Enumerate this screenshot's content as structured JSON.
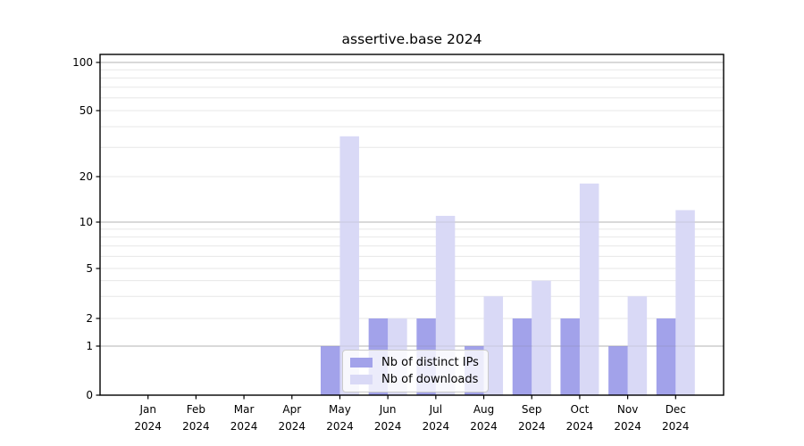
{
  "chart_data": {
    "type": "bar",
    "title": "assertive.base 2024",
    "categories": [
      "Jan",
      "Feb",
      "Mar",
      "Apr",
      "May",
      "Jun",
      "Jul",
      "Aug",
      "Sep",
      "Oct",
      "Nov",
      "Dec"
    ],
    "year_label": "2024",
    "series": [
      {
        "name": "Nb of distinct IPs",
        "color": "#a2a2ea",
        "values": [
          0,
          0,
          0,
          0,
          1,
          2,
          2,
          1,
          2,
          2,
          1,
          2
        ]
      },
      {
        "name": "Nb of downloads",
        "color": "#d9d9f6",
        "values": [
          0,
          0,
          0,
          0,
          35,
          2,
          11,
          3,
          4,
          18,
          3,
          12
        ]
      }
    ],
    "xlabel": "",
    "ylabel": "",
    "ytick_values": [
      0,
      1,
      2,
      5,
      10,
      20,
      50,
      100
    ],
    "ytick_labels": [
      "0",
      "1",
      "2",
      "5",
      "10",
      "20",
      "50",
      "100"
    ],
    "scale": "symlog-like (linear 0-1, compressed log above)",
    "grid": true,
    "grid_major_color": "#c2c2c2",
    "grid_minor_color": "#e7e7e7",
    "axis_color": "#000000",
    "legend_position": "lower center, inside plot"
  }
}
